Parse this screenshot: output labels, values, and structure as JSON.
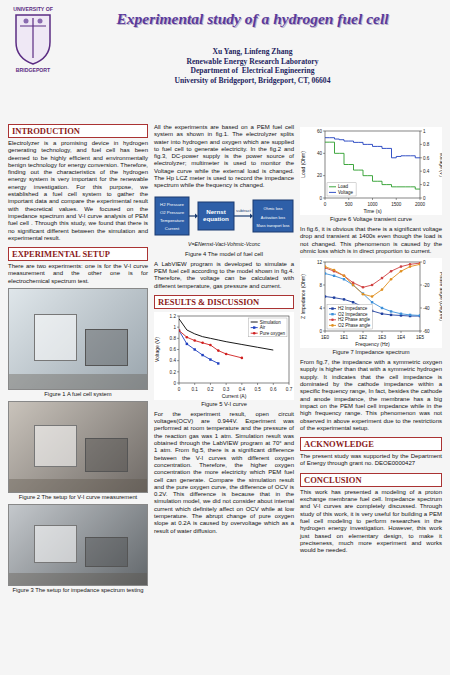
{
  "header": {
    "logo_top": "UNIVERSITY OF",
    "logo_bottom": "BRIDGEPORT",
    "title": "Experimental study of a hydrogen fuel cell",
    "authors": "Xu Yang, Linfeng Zhang",
    "lab": "Renewable Energy Research Laboratory",
    "department": "Department of  Electrical Engineering",
    "university": "University of Bridgeport, Bridgeport, CT, 06604"
  },
  "introduction": {
    "heading": "INTRODUCTION",
    "text": "Electrolyzer is a promising device in hydrogen generating technology, and fuel cell has been deemed to be highly efficient and environmentally benign technology for energy conversion. Therefore, finding out the characteristics of the hydrogen energy system is very important for the renewable energy investigation. For this purpose, we established a fuel cell system to gather the important data and compare the experimental result with theoretical values. We focused on the impedance spectrum and V-I curve analysis of PEM fuel cell . Through this study, we found that there is no significant different between the simulation and experimental result."
  },
  "experimental_setup": {
    "heading": "EXPERIMENTAL SETUP",
    "text": "There are two experiments: one is for the V-I curve measurement and the other one is for electrochemical spectrum test.",
    "figures": [
      {
        "caption": "Figure 1 A fuel cell system"
      },
      {
        "caption": "Figure 2 The setup for V-I curve measurement"
      },
      {
        "caption": "Figure 3 The setup for impedance spectrum testing"
      }
    ],
    "system_text": "All the experiments are based on a PEM fuel cell system as shown in fig.1. The electrolyzer splits water into hydrogen and oxygen which are supplied to fuel cell to generate electricity. In the fig.2 and fig.3, DC-power supply is the power source of electrolyzer; multimeter is used to monitor the Voltage curve while the external load is changed. The Hp LCZ meter is used to record the impedance spectrum while the frequency is changed.",
    "model_figure": {
      "inputs": [
        "H2 Pressure",
        "O2 Pressure",
        "Temperature",
        "Current"
      ],
      "equation": "Nernst equation",
      "operation": "subtract",
      "losses": [
        "Ohmic loss",
        "Activation loss",
        "Mass transport loss"
      ],
      "formula": "V=ENernst-Vact-Vohmic-Vconc",
      "caption": "Figure 4 The model of fuel cell"
    },
    "simulation_text": "A LabVIEW program is developed to simulate a PEM fuel cell according to the model shown in fig.4. Therefore, the voltage can be calculated with different temperature, gas pressure and current."
  },
  "results": {
    "heading": "RESULTS & DISCUSSION",
    "vi_text": "For the experiment result, open circuit voltages(OCV) are 0.944V. Experiment was performed at room temperature and the pressure of the reaction gas was 1 atm. Simulation result was obtained through the LabVIEW program at 70° and 1 atm. From fig.5, there is a significant difference between the V-I curves with different oxygen concentration. Therefore, the higher oxygen concentration the more electricity which PEM fuel cell can generate. Compare the simulation result and the pure oxygen curve, the difference of OCV is 0.2V. This difference is because that in the simulation model, we did not consider about internal current which definitely affect on OCV while at low temperature. The abrupt change of pure oxygen slope at 0.2A is caused by overvoltage which as a result of water diffusion.",
    "transient_text": "In fig.6, it is obvious that there is a significant voltage drop and transient at 1400s even though the load is not changed. This phenomenon is caused by the ohmic loss which is in direct proportion to current.",
    "impedance_text": "From fig.7, the impedance with a symmetric oxygen supply is higher than that with a symmetric hydrogen supply. It indicates that the cell impedance is dominated by the cathode impedance within a specific frequency range, In fact, besides the cathode and anode impedance, the membrane has a big impact on the PEM fuel cell impedance while in the high frequency range. This phenomenon was not observed in above experiment due to the restrictions of the experimental setup."
  },
  "acknowledge": {
    "heading": "ACKNOWLEDGE",
    "text": "The present study was supported by the Department of Energy through grant no. DEOE0000427"
  },
  "conclusion": {
    "heading": "CONCLUSION",
    "text": "This work has presented a modeling of a proton exchange membrane fuel cell. Impedance spectrum and V-I curves are completely discussed. Through study of this work, it is very useful for building a PEM fuel cell modeling to perform researches in the hydrogen energy investigation. However, this work just based on elementary design, to make it preciseness, much more experiment and works would be needed."
  },
  "chart_data": [
    {
      "type": "line",
      "title": "Figure 5 V-I curve",
      "x_label": "Current (A)",
      "y_label": "Voltage (V)",
      "x": [
        0,
        0.05,
        0.1,
        0.15,
        0.2,
        0.25,
        0.3,
        0.4,
        0.5,
        0.6
      ],
      "xlim": [
        0,
        0.7
      ],
      "xticks": [
        0,
        0.1,
        0.2,
        0.3,
        0.4,
        0.5,
        0.6,
        0.7
      ],
      "ylim": [
        0,
        1.2
      ],
      "yticks": [
        0,
        0.2,
        0.4,
        0.6,
        0.8,
        1,
        1.2
      ],
      "grid": false,
      "legend": "upper right",
      "series": [
        {
          "name": "Simulation",
          "color": "#000000",
          "marker": "none",
          "line_style": "solid",
          "values": [
            1.15,
            0.95,
            0.88,
            0.83,
            0.8,
            0.77,
            0.74,
            0.69,
            0.64,
            0.59
          ]
        },
        {
          "name": "Air",
          "color": "#1f3fbf",
          "marker": "square",
          "line_style": "solid",
          "values": [
            0.94,
            0.7,
            0.6,
            0.5,
            0.42,
            0.35,
            null,
            null,
            null,
            null
          ]
        },
        {
          "name": "Pure oxygen",
          "color": "#d02020",
          "marker": "circle",
          "line_style": "solid",
          "values": [
            0.94,
            0.82,
            0.76,
            0.72,
            0.68,
            0.58,
            0.52,
            0.45,
            null,
            null
          ]
        }
      ]
    },
    {
      "type": "line",
      "title": "Figure 6 Voltage transient curve",
      "x_label": "Time (s)",
      "y_label": "Load (Ohm)",
      "y2_label": "Voltage (V)",
      "x": [
        0,
        100,
        200,
        300,
        400,
        500,
        600,
        700,
        800,
        900,
        1000,
        1100,
        1200,
        1300,
        1400,
        1500,
        1600,
        1700,
        1800,
        1900,
        2000
      ],
      "xlim": [
        0,
        2000
      ],
      "xticks": [
        0,
        500,
        1000,
        1500,
        2000
      ],
      "ylim": [
        0,
        60
      ],
      "yticks": [
        0,
        20,
        40,
        60
      ],
      "y2lim": [
        0,
        1
      ],
      "y2ticks": [
        0,
        0.2,
        0.4,
        0.6,
        0.8,
        1
      ],
      "grid": false,
      "legend": "lower left",
      "series": [
        {
          "name": "Load",
          "color": "#2a9d2a",
          "marker": "none",
          "line_style": "step",
          "values": [
            50,
            50,
            40,
            40,
            30,
            30,
            25,
            25,
            20,
            20,
            15,
            15,
            12,
            12,
            10,
            10,
            10,
            10,
            10,
            8,
            8
          ]
        },
        {
          "name": "Voltage",
          "color": "#1f3fbf",
          "marker": "none",
          "line_style": "step",
          "axis": "y2",
          "values": [
            0.9,
            0.9,
            0.88,
            0.87,
            0.85,
            0.85,
            0.83,
            0.83,
            0.8,
            0.8,
            0.77,
            0.77,
            0.74,
            0.74,
            0.6,
            0.62,
            0.63,
            0.63,
            0.63,
            0.6,
            0.6
          ]
        }
      ]
    },
    {
      "type": "line",
      "title": "Figure 7 Impedance spectrum",
      "x_label": "Frequency (Hz)",
      "y_label": "Z Impedance (Ohm)",
      "y2_label": "Phase angle (Degree)",
      "log": "x",
      "x": [
        1,
        3,
        10,
        30,
        100,
        300,
        1000,
        3000,
        10000,
        30000,
        100000
      ],
      "xlim": [
        1,
        100000
      ],
      "xticks": [
        {
          "value": 1,
          "label": "1E0"
        },
        {
          "value": 10,
          "label": "1E1"
        },
        {
          "value": 100,
          "label": "1E2"
        },
        {
          "value": 1000,
          "label": "1E3"
        },
        {
          "value": 10000,
          "label": "1E4"
        },
        {
          "value": 100000,
          "label": "1E5"
        }
      ],
      "ylim": [
        0,
        12
      ],
      "yticks": [
        0,
        4,
        8,
        12
      ],
      "y2lim": [
        -60,
        0
      ],
      "y2ticks": [
        -60,
        -40,
        -20,
        0
      ],
      "grid": false,
      "legend": "lower left",
      "series": [
        {
          "name": "H2 Impedance",
          "color": "#1f3f9f",
          "marker": "square",
          "line_style": "solid",
          "values": [
            6,
            5.8,
            5.5,
            5,
            4.2,
            3.5,
            3,
            2.8,
            2.7,
            2.6,
            2.6
          ]
        },
        {
          "name": "O2 Impedance",
          "color": "#3b8fd9",
          "marker": "square",
          "line_style": "solid",
          "values": [
            10,
            9.6,
            9,
            8,
            6.5,
            5,
            4,
            3.4,
            3,
            2.8,
            2.7
          ]
        },
        {
          "name": "H2 Phase angle",
          "color": "#d04040",
          "marker": "circle",
          "line_style": "solid",
          "axis": "y2",
          "values": [
            -5,
            -8,
            -12,
            -18,
            -22,
            -20,
            -14,
            -8,
            -4,
            -2,
            -1
          ]
        },
        {
          "name": "O2 Phase angle",
          "color": "#e09020",
          "marker": "circle",
          "line_style": "solid",
          "axis": "y2",
          "values": [
            -4,
            -7,
            -12,
            -20,
            -28,
            -30,
            -24,
            -15,
            -8,
            -4,
            -2
          ]
        }
      ]
    }
  ]
}
